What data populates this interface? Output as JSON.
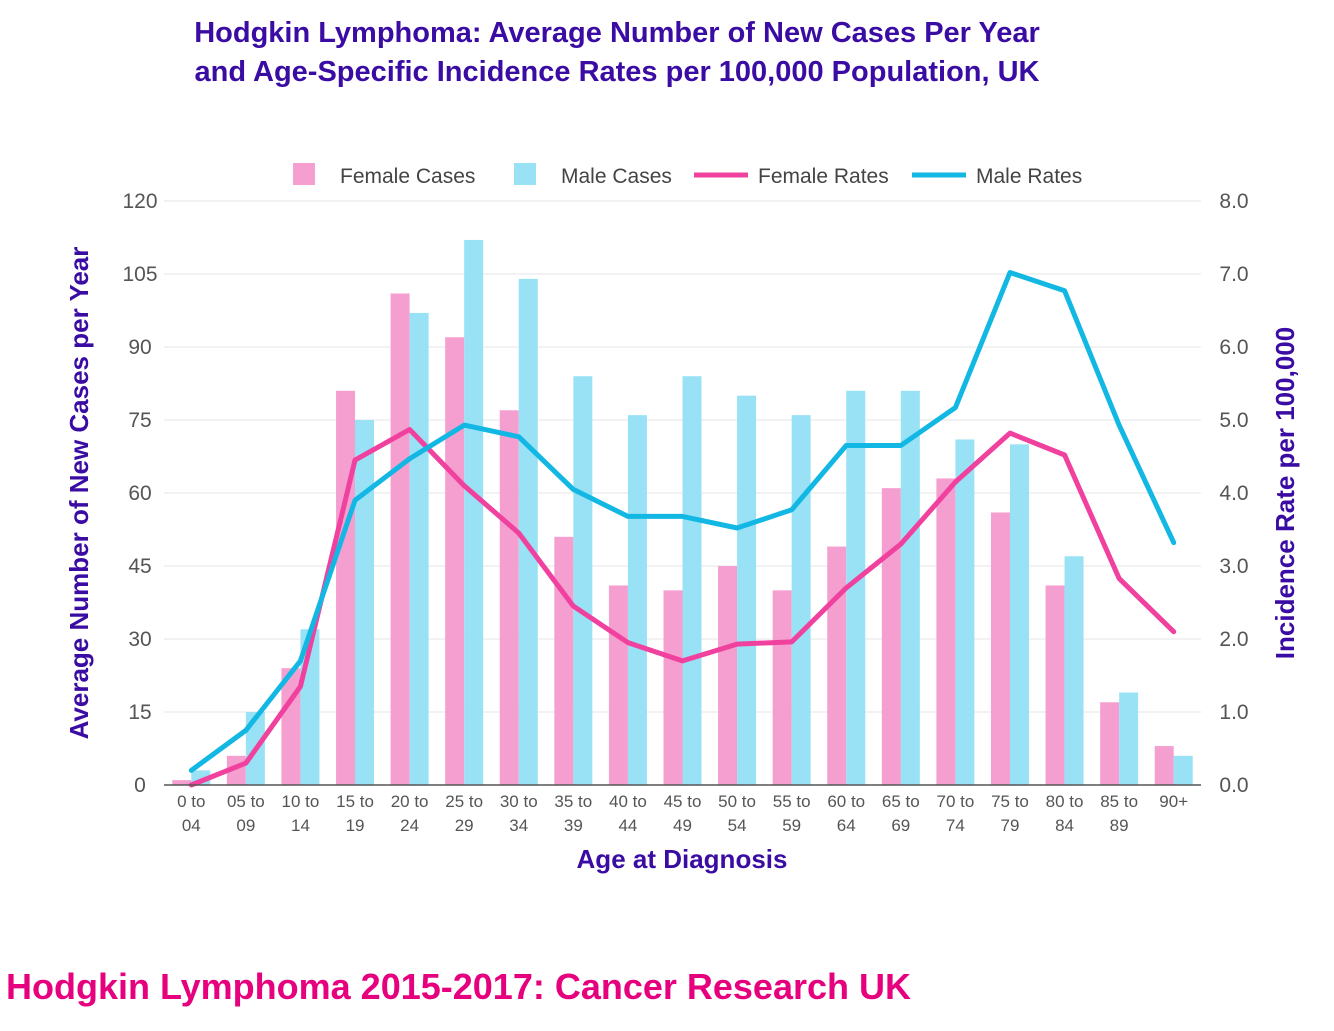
{
  "title_line1": "Hodgkin Lymphoma: Average Number of New Cases Per Year",
  "title_line2": "and Age-Specific Incidence Rates per 100,000 Population, UK",
  "source": "Hodgkin Lymphoma 2015-2017: Cancer Research UK",
  "colors": {
    "female_bar": "#f59fd0",
    "male_bar": "#99e2f6",
    "female_line": "#f0419e",
    "male_line": "#12b8e3",
    "axis_title": "#3a0ca3",
    "tick": "#555555",
    "grid": "#e6e6e6"
  },
  "chart_data": {
    "type": "bar+line",
    "xlabel": "Age at Diagnosis",
    "ylabel_left": "Average Number of New Cases per Year",
    "ylabel_right": "Incidence Rate per 100,000",
    "ylim_left": [
      0,
      120
    ],
    "ylim_right": [
      0,
      8
    ],
    "yticks_left": [
      "0",
      "15",
      "30",
      "45",
      "60",
      "75",
      "90",
      "105",
      "120"
    ],
    "yticks_right": [
      "0.0",
      "1.0",
      "2.0",
      "3.0",
      "4.0",
      "5.0",
      "6.0",
      "7.0",
      "8.0"
    ],
    "categories": [
      [
        "0 to",
        "04"
      ],
      [
        "05 to",
        "09"
      ],
      [
        "10 to",
        "14"
      ],
      [
        "15 to",
        "19"
      ],
      [
        "20 to",
        "24"
      ],
      [
        "25 to",
        "29"
      ],
      [
        "30 to",
        "34"
      ],
      [
        "35 to",
        "39"
      ],
      [
        "40 to",
        "44"
      ],
      [
        "45 to",
        "49"
      ],
      [
        "50 to",
        "54"
      ],
      [
        "55 to",
        "59"
      ],
      [
        "60 to",
        "64"
      ],
      [
        "65 to",
        "69"
      ],
      [
        "70 to",
        "74"
      ],
      [
        "75 to",
        "79"
      ],
      [
        "80 to",
        "84"
      ],
      [
        "85 to",
        "89"
      ],
      [
        "90+",
        ""
      ]
    ],
    "legend": [
      "Female Cases",
      "Male Cases",
      "Female Rates",
      "Male Rates"
    ],
    "series": [
      {
        "name": "Female Cases",
        "kind": "bar",
        "axis": "left",
        "values": [
          1,
          6,
          24,
          81,
          101,
          92,
          77,
          51,
          41,
          40,
          45,
          40,
          49,
          61,
          63,
          56,
          41,
          17,
          8
        ]
      },
      {
        "name": "Male Cases",
        "kind": "bar",
        "axis": "left",
        "values": [
          3,
          15,
          32,
          75,
          97,
          112,
          104,
          84,
          76,
          84,
          80,
          76,
          81,
          81,
          71,
          70,
          47,
          19,
          6
        ]
      },
      {
        "name": "Female Rates",
        "kind": "line",
        "axis": "right",
        "values": [
          0.0,
          0.3,
          1.35,
          4.45,
          4.87,
          4.1,
          3.45,
          2.45,
          1.95,
          1.7,
          1.93,
          1.96,
          2.7,
          3.3,
          4.15,
          4.82,
          4.52,
          2.83,
          2.1
        ]
      },
      {
        "name": "Male Rates",
        "kind": "line",
        "axis": "right",
        "values": [
          0.2,
          0.75,
          1.7,
          3.9,
          4.47,
          4.93,
          4.77,
          4.05,
          3.68,
          3.68,
          3.52,
          3.77,
          4.65,
          4.65,
          5.17,
          7.02,
          6.77,
          4.93,
          3.32
        ]
      }
    ]
  }
}
